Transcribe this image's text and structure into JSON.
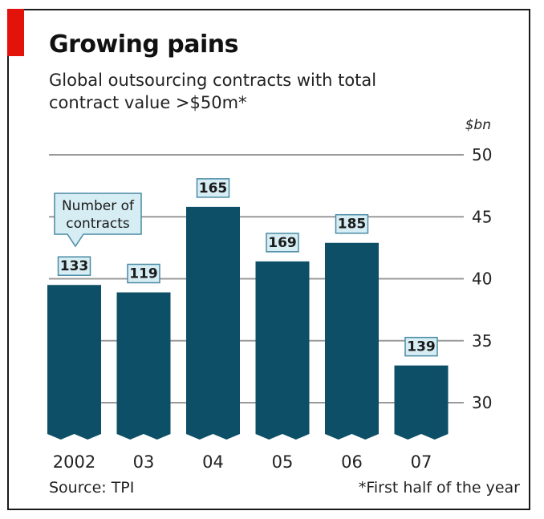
{
  "title": "Growing pains",
  "subtitle": "Global outsourcing contracts with total contract value >$50m*",
  "unit": "$bn",
  "source": "Source: TPI",
  "footnote": "*First half of the year",
  "annotation": "Number of contracts",
  "colors": {
    "bar": "#0d4f66",
    "label_box": "#d6edf4",
    "label_border": "#4a8aa3",
    "grid": "#9a9a9a",
    "accent": "#e3120b"
  },
  "chart_data": {
    "type": "bar",
    "categories": [
      "2002",
      "03",
      "04",
      "05",
      "06",
      "07"
    ],
    "values": [
      39.5,
      38.9,
      45.8,
      41.4,
      42.9,
      33.0
    ],
    "contract_counts": [
      "133",
      "119",
      "165",
      "169",
      "185",
      "139"
    ],
    "title": "Growing pains",
    "subtitle": "Global outsourcing contracts with total contract value >$50m*",
    "ylabel": "$bn",
    "ylim": [
      27,
      50
    ],
    "yticks": [
      30,
      35,
      40,
      45,
      50
    ],
    "grid": true
  }
}
